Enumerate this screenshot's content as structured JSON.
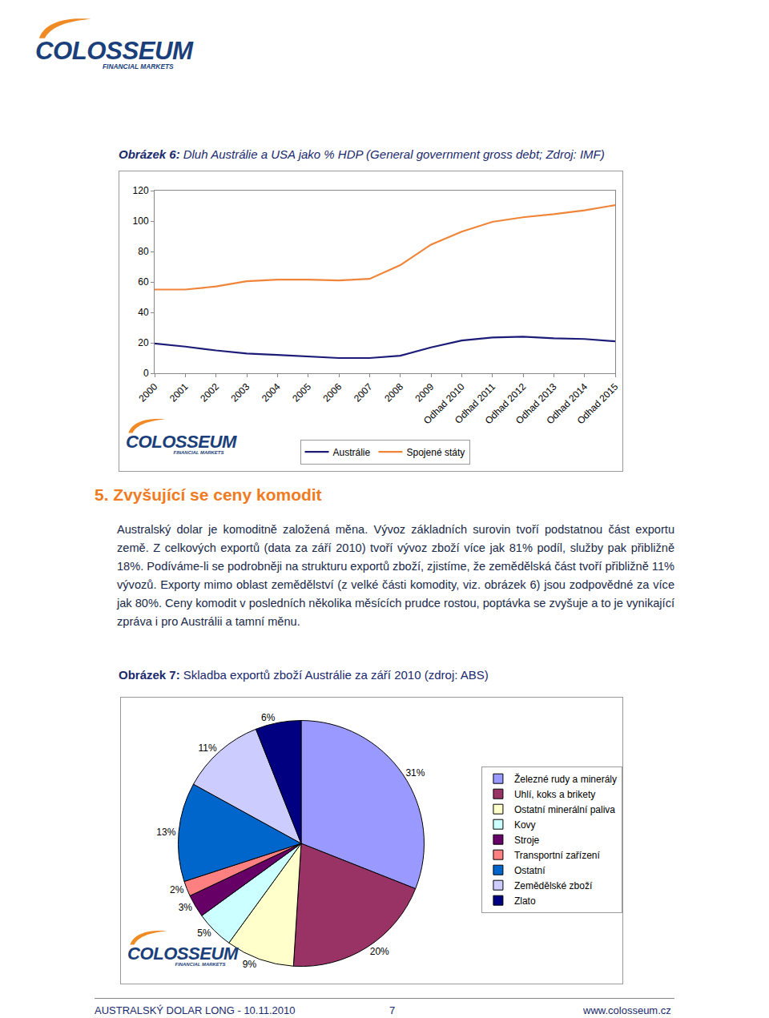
{
  "header": {
    "logo_name": "COLOSSEUM",
    "logo_tagline": "FINANCIAL MARKETS"
  },
  "figure6": {
    "label": "Obrázek 6:",
    "caption": "Dluh Austrálie a USA jako % HDP (General government gross debt; Zdroj: IMF)"
  },
  "section": {
    "title": "5. Zvyšující se ceny komodit",
    "paragraph": "Australský dolar je komoditně založená měna. Vývoz základních surovin tvoří podstatnou část exportu země. Z celkových exportů (data za září 2010) tvoří vývoz zboží více jak 81% podíl, služby pak přibližně 18%. Podíváme-li se podrobněji na strukturu exportů zboží, zjistíme, že zemědělská část tvoří přibližně 11% vývozů. Exporty mimo oblast zemědělství (z velké části komodity, viz. obrázek 6) jsou zodpovědné za více jak 80%. Ceny komodit v posledních několika měsících prudce rostou, poptávka se zvyšuje a to je vynikající zpráva i pro Austrálii a tamní měnu."
  },
  "figure7": {
    "label": "Obrázek 7:",
    "caption": "Skladba exportů zboží Austrálie za září 2010 (zdroj: ABS)"
  },
  "footer": {
    "left": "AUSTRALSKÝ DOLAR LONG - 10.11.2010",
    "page": "7",
    "right": "www.colosseum.cz"
  },
  "chart_data": [
    {
      "type": "line",
      "categories": [
        "2000",
        "2001",
        "2002",
        "2003",
        "2004",
        "2005",
        "2006",
        "2007",
        "2008",
        "2009",
        "Odhad 2010",
        "Odhad 2011",
        "Odhad 2012",
        "Odhad 2013",
        "Odhad 2014",
        "Odhad 2015"
      ],
      "series": [
        {
          "name": "Austrálie",
          "color": "#1c1c78",
          "values": [
            19.5,
            17.5,
            15,
            13,
            12,
            11,
            10,
            10,
            11.5,
            17,
            21.5,
            23.5,
            24,
            23,
            22.5,
            21
          ]
        },
        {
          "name": "Spojené státy",
          "color": "#f0853a",
          "values": [
            55,
            55,
            57,
            60.5,
            61.5,
            61.5,
            61,
            62,
            71,
            84.5,
            93,
            99.5,
            102.5,
            104.5,
            107,
            110.5
          ]
        }
      ],
      "ylim": [
        0,
        120
      ],
      "yticks": [
        0,
        20,
        40,
        60,
        80,
        100,
        120
      ],
      "grid": false,
      "legend": "bottom"
    },
    {
      "type": "pie",
      "categories": [
        "Železné rudy a minerály",
        "Uhlí, koks a brikety",
        "Ostatní minerální paliva",
        "Kovy",
        "Stroje",
        "Transportní zařízení",
        "Ostatní",
        "Zemědělské zboží",
        "Zlato"
      ],
      "values": [
        31,
        20,
        9,
        5,
        3,
        2,
        13,
        11,
        6
      ],
      "value_labels": [
        "31%",
        "20%",
        "9%",
        "5%",
        "3%",
        "2%",
        "13%",
        "11%",
        "6%"
      ],
      "colors": [
        "#9999ff",
        "#993366",
        "#ffffcc",
        "#ccffff",
        "#660066",
        "#ff8080",
        "#0066cc",
        "#ccccff",
        "#000080"
      ],
      "legend": "right"
    }
  ]
}
